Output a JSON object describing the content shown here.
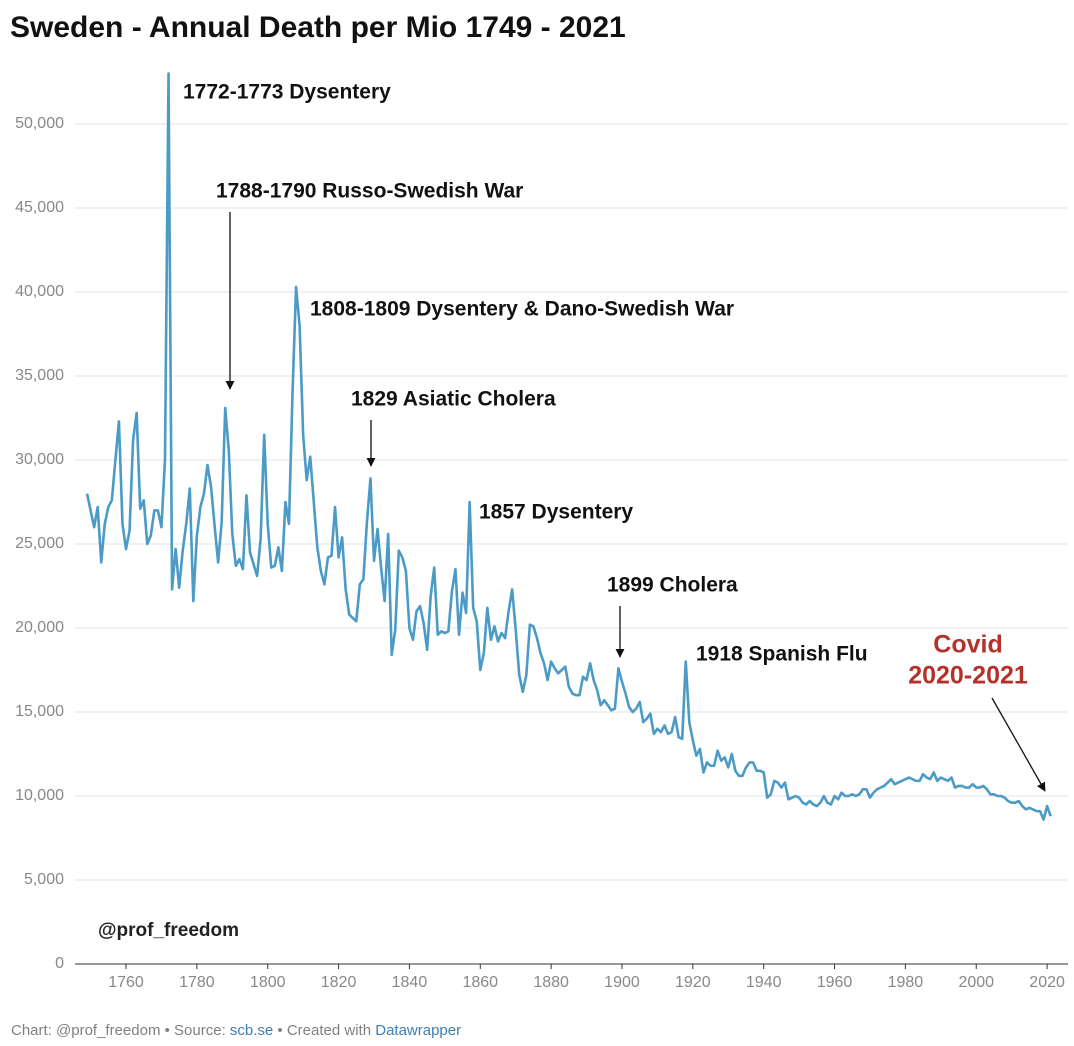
{
  "chart_data": {
    "type": "line",
    "title": "Sweden - Annual Death per Mio 1749 - 2021",
    "watermark": "@prof_freedom",
    "color": "#4b9bc6",
    "grid": true,
    "x": [
      1749,
      1750,
      1751,
      1752,
      1753,
      1754,
      1755,
      1756,
      1757,
      1758,
      1759,
      1760,
      1761,
      1762,
      1763,
      1764,
      1765,
      1766,
      1767,
      1768,
      1769,
      1770,
      1771,
      1772,
      1773,
      1774,
      1775,
      1776,
      1777,
      1778,
      1779,
      1780,
      1781,
      1782,
      1783,
      1784,
      1785,
      1786,
      1787,
      1788,
      1789,
      1790,
      1791,
      1792,
      1793,
      1794,
      1795,
      1796,
      1797,
      1798,
      1799,
      1800,
      1801,
      1802,
      1803,
      1804,
      1805,
      1806,
      1807,
      1808,
      1809,
      1810,
      1811,
      1812,
      1813,
      1814,
      1815,
      1816,
      1817,
      1818,
      1819,
      1820,
      1821,
      1822,
      1823,
      1824,
      1825,
      1826,
      1827,
      1828,
      1829,
      1830,
      1831,
      1832,
      1833,
      1834,
      1835,
      1836,
      1837,
      1838,
      1839,
      1840,
      1841,
      1842,
      1843,
      1844,
      1845,
      1846,
      1847,
      1848,
      1849,
      1850,
      1851,
      1852,
      1853,
      1854,
      1855,
      1856,
      1857,
      1858,
      1859,
      1860,
      1861,
      1862,
      1863,
      1864,
      1865,
      1866,
      1867,
      1868,
      1869,
      1870,
      1871,
      1872,
      1873,
      1874,
      1875,
      1876,
      1877,
      1878,
      1879,
      1880,
      1881,
      1882,
      1883,
      1884,
      1885,
      1886,
      1887,
      1888,
      1889,
      1890,
      1891,
      1892,
      1893,
      1894,
      1895,
      1896,
      1897,
      1898,
      1899,
      1900,
      1901,
      1902,
      1903,
      1904,
      1905,
      1906,
      1907,
      1908,
      1909,
      1910,
      1911,
      1912,
      1913,
      1914,
      1915,
      1916,
      1917,
      1918,
      1919,
      1920,
      1921,
      1922,
      1923,
      1924,
      1925,
      1926,
      1927,
      1928,
      1929,
      1930,
      1931,
      1932,
      1933,
      1934,
      1935,
      1936,
      1937,
      1938,
      1939,
      1940,
      1941,
      1942,
      1943,
      1944,
      1945,
      1946,
      1947,
      1948,
      1949,
      1950,
      1951,
      1952,
      1953,
      1954,
      1955,
      1956,
      1957,
      1958,
      1959,
      1960,
      1961,
      1962,
      1963,
      1964,
      1965,
      1966,
      1967,
      1968,
      1969,
      1970,
      1971,
      1972,
      1973,
      1974,
      1975,
      1976,
      1977,
      1978,
      1979,
      1980,
      1981,
      1982,
      1983,
      1984,
      1985,
      1986,
      1987,
      1988,
      1989,
      1990,
      1991,
      1992,
      1993,
      1994,
      1995,
      1996,
      1997,
      1998,
      1999,
      2000,
      2001,
      2002,
      2003,
      2004,
      2005,
      2006,
      2007,
      2008,
      2009,
      2010,
      2011,
      2012,
      2013,
      2014,
      2015,
      2016,
      2017,
      2018,
      2019,
      2020,
      2021
    ],
    "values": [
      28000,
      27000,
      26000,
      27200,
      23900,
      26200,
      27200,
      27600,
      30000,
      32300,
      26200,
      24700,
      25800,
      31200,
      32800,
      27100,
      27600,
      25000,
      25500,
      27000,
      27000,
      26000,
      30000,
      53000,
      22300,
      24700,
      22400,
      24600,
      26200,
      28300,
      21600,
      25500,
      27200,
      28000,
      29700,
      28400,
      26100,
      23900,
      26300,
      33100,
      30600,
      25600,
      23700,
      24100,
      23500,
      27900,
      24500,
      23800,
      23100,
      25300,
      31500,
      26200,
      23600,
      23700,
      24800,
      23400,
      27500,
      26200,
      34000,
      40300,
      38000,
      31500,
      28800,
      30200,
      27500,
      24800,
      23400,
      22600,
      24200,
      24300,
      27200,
      24200,
      25400,
      22300,
      20800,
      20600,
      20400,
      22600,
      22900,
      26300,
      28900,
      24000,
      25900,
      23600,
      21600,
      25600,
      18400,
      19900,
      24600,
      24200,
      23400,
      20000,
      19300,
      21000,
      21300,
      20300,
      18700,
      21900,
      23600,
      19600,
      19800,
      19700,
      19800,
      22200,
      23500,
      19600,
      22100,
      20900,
      27500,
      21200,
      20400,
      17500,
      18500,
      21200,
      19300,
      20100,
      19200,
      19700,
      19400,
      21000,
      22300,
      19900,
      17200,
      16200,
      17200,
      20200,
      20100,
      19400,
      18500,
      17900,
      16900,
      18000,
      17600,
      17300,
      17500,
      17700,
      16500,
      16100,
      16000,
      16000,
      17100,
      16900,
      17900,
      16900,
      16300,
      15400,
      15700,
      15400,
      15100,
      15200,
      17600,
      16800,
      16100,
      15300,
      15000,
      15200,
      15600,
      14400,
      14600,
      14900,
      13700,
      14000,
      13800,
      14200,
      13700,
      13800,
      14700,
      13500,
      13400,
      18000,
      14400,
      13300,
      12400,
      12800,
      11400,
      12000,
      11800,
      11800,
      12700,
      12100,
      12300,
      11700,
      12500,
      11500,
      11200,
      11200,
      11700,
      12000,
      12000,
      11500,
      11500,
      11400,
      9900,
      10100,
      10900,
      10800,
      10500,
      10800,
      9800,
      9900,
      10000,
      9900,
      9600,
      9500,
      9700,
      9500,
      9400,
      9600,
      10000,
      9600,
      9500,
      10000,
      9800,
      10200,
      10000,
      10000,
      10100,
      10000,
      10100,
      10400,
      10400,
      9900,
      10200,
      10400,
      10500,
      10600,
      10800,
      11000,
      10700,
      10800,
      10900,
      11000,
      11100,
      11000,
      10900,
      10900,
      11300,
      11100,
      11000,
      11400,
      10900,
      11100,
      11000,
      10900,
      11100,
      10500,
      10600,
      10600,
      10500,
      10500,
      10700,
      10500,
      10500,
      10600,
      10400,
      10100,
      10100,
      10000,
      10000,
      9900,
      9700,
      9600,
      9600,
      9700,
      9400,
      9200,
      9300,
      9200,
      9100,
      9100,
      8600,
      9400,
      8800
    ],
    "xlim": [
      1745.6,
      2025.9
    ],
    "xticks": [
      1760,
      1780,
      1800,
      1820,
      1840,
      1860,
      1880,
      1900,
      1920,
      1940,
      1960,
      1980,
      2000,
      2020
    ],
    "ylim": [
      0,
      54000
    ],
    "yticks": [
      0,
      {
        "value": 5000,
        "label": "5,000"
      },
      {
        "value": 10000,
        "label": "10,000"
      },
      {
        "value": 15000,
        "label": "15,000"
      },
      {
        "value": 20000,
        "label": "20,000"
      },
      {
        "value": 25000,
        "label": "25,000"
      },
      {
        "value": 30000,
        "label": "30,000"
      },
      {
        "value": 35000,
        "label": "35,000"
      },
      {
        "value": 40000,
        "label": "40,000"
      },
      {
        "value": 45000,
        "label": "45,000"
      },
      {
        "value": 50000,
        "label": "50,000"
      }
    ],
    "annotations": [
      {
        "text": "1772-1773 Dysentery"
      },
      {
        "text": "1788-1790 Russo-Swedish War"
      },
      {
        "text": "1808-1809 Dysentery & Dano-Swedish War"
      },
      {
        "text": "1829 Asiatic Cholera"
      },
      {
        "text": "1857 Dysentery"
      },
      {
        "text": "1899 Cholera"
      },
      {
        "text": "1918 Spanish Flu"
      },
      {
        "text": "Covid",
        "color": "#b5322a"
      },
      {
        "text": "2020-2021",
        "color": "#b5322a"
      }
    ],
    "footer": {
      "prefix": "Chart: @prof_freedom • Source: ",
      "source": "scb.se",
      "middle": " • Created with ",
      "tool": "Datawrapper"
    }
  }
}
